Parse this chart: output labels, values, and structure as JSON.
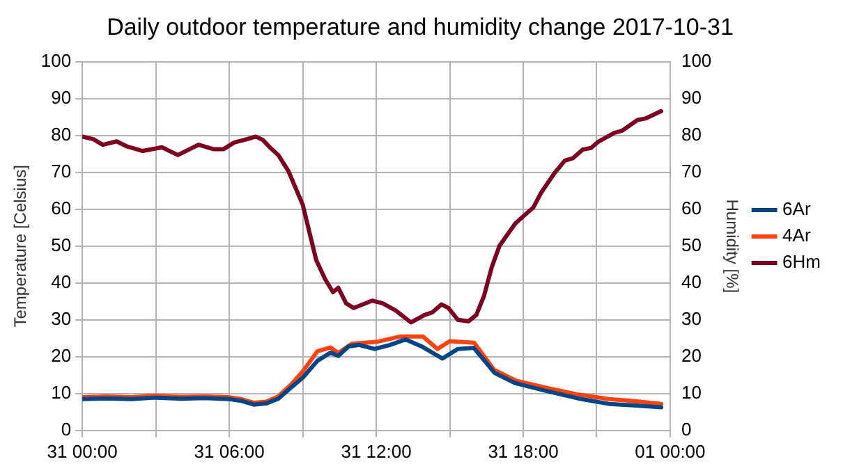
{
  "chart_data": {
    "type": "line",
    "title": "Daily outdoor temperature and humidity change 2017-10-31",
    "ylabel": "Temperature [Celsius]",
    "y2label": "Humidity [%]",
    "xlim": [
      "2017-10-31T00:00",
      "2017-11-01T00:00"
    ],
    "xticks": [
      {
        "value": "2017-10-31T00:00",
        "label": "31 00:00"
      },
      {
        "value": "2017-10-31T03:00",
        "label": null
      },
      {
        "value": "2017-10-31T06:00",
        "label": "31 06:00"
      },
      {
        "value": "2017-10-31T09:00",
        "label": null
      },
      {
        "value": "2017-10-31T12:00",
        "label": "31 12:00"
      },
      {
        "value": "2017-10-31T15:00",
        "label": null
      },
      {
        "value": "2017-10-31T18:00",
        "label": "31 18:00"
      },
      {
        "value": "2017-10-31T21:00",
        "label": null
      },
      {
        "value": "2017-11-01T00:00",
        "label": "01 00:00"
      }
    ],
    "ylim": [
      0,
      100
    ],
    "yticks": [
      0,
      10,
      20,
      30,
      40,
      50,
      60,
      70,
      80,
      90,
      100
    ],
    "y2lim": [
      0,
      100
    ],
    "y2ticks": [
      0,
      10,
      20,
      30,
      40,
      50,
      60,
      70,
      80,
      90,
      100
    ],
    "grid": true,
    "legend": "right",
    "marker": "none",
    "line_style": "solid",
    "series": [
      {
        "name": "6Ar",
        "color": "#004586",
        "x": [
          "2017-10-31T00:00",
          "2017-10-31T01:00",
          "2017-10-31T02:00",
          "2017-10-31T03:00",
          "2017-10-31T04:00",
          "2017-10-31T05:00",
          "2017-10-31T06:00",
          "2017-10-31T06:30",
          "2017-10-31T07:00",
          "2017-10-31T07:30",
          "2017-10-31T08:00",
          "2017-10-31T08:32",
          "2017-10-31T09:00",
          "2017-10-31T09:36",
          "2017-10-31T10:08",
          "2017-10-31T10:27",
          "2017-10-31T10:52",
          "2017-10-31T11:18",
          "2017-10-31T11:56",
          "2017-10-31T12:34",
          "2017-10-31T13:12",
          "2017-10-31T13:51",
          "2017-10-31T14:42",
          "2017-10-31T15:20",
          "2017-10-31T15:59",
          "2017-10-31T16:50",
          "2017-10-31T17:41",
          "2017-10-31T18:57",
          "2017-10-31T20:14",
          "2017-10-31T21:30",
          "2017-10-31T22:30",
          "2017-10-31T23:38"
        ],
        "values": [
          8.5,
          8.7,
          8.5,
          8.9,
          8.6,
          8.8,
          8.5,
          8,
          7,
          7.3,
          8.6,
          11.7,
          14.3,
          18.9,
          21.1,
          20.2,
          22.8,
          23.2,
          22.1,
          23.2,
          24.7,
          22.8,
          19.5,
          22.1,
          22.4,
          15.6,
          12.8,
          10.7,
          8.7,
          7.2,
          6.8,
          6.3
        ]
      },
      {
        "name": "4Ar",
        "color": "#ff420e",
        "x": [
          "2017-10-31T00:00",
          "2017-10-31T01:00",
          "2017-10-31T02:00",
          "2017-10-31T03:00",
          "2017-10-31T04:00",
          "2017-10-31T05:00",
          "2017-10-31T06:00",
          "2017-10-31T06:30",
          "2017-10-31T07:00",
          "2017-10-31T07:30",
          "2017-10-31T08:00",
          "2017-10-31T08:32",
          "2017-10-31T09:00",
          "2017-10-31T09:36",
          "2017-10-31T10:08",
          "2017-10-31T10:27",
          "2017-10-31T11:00",
          "2017-10-31T12:00",
          "2017-10-31T13:00",
          "2017-10-31T13:54",
          "2017-10-31T14:30",
          "2017-10-31T15:00",
          "2017-10-31T16:00",
          "2017-10-31T16:48",
          "2017-10-31T17:42",
          "2017-10-31T19:00",
          "2017-10-31T20:12",
          "2017-10-31T21:30",
          "2017-10-31T22:30",
          "2017-10-31T23:38"
        ],
        "values": [
          9,
          9.2,
          9,
          9.4,
          9.1,
          9.2,
          9,
          8.5,
          7.5,
          7.8,
          9.2,
          12.5,
          16,
          21.5,
          22.5,
          21,
          23.5,
          24,
          25.5,
          25.5,
          22.1,
          24.2,
          23.8,
          16.5,
          13.5,
          11.5,
          9.8,
          8.5,
          8,
          7.2
        ]
      },
      {
        "name": "6Hm",
        "color": "#7e0021",
        "axis": "y2",
        "x": [
          "2017-10-31T00:00",
          "2017-10-31T00:27",
          "2017-10-31T00:50",
          "2017-10-31T01:24",
          "2017-10-31T01:50",
          "2017-10-31T02:28",
          "2017-10-31T03:15",
          "2017-10-31T03:54",
          "2017-10-31T04:45",
          "2017-10-31T05:21",
          "2017-10-31T05:46",
          "2017-10-31T06:12",
          "2017-10-31T06:43",
          "2017-10-31T07:05",
          "2017-10-31T07:22",
          "2017-10-31T07:41",
          "2017-10-31T08:00",
          "2017-10-31T08:25",
          "2017-10-31T09:00",
          "2017-10-31T09:17",
          "2017-10-31T09:33",
          "2017-10-31T09:55",
          "2017-10-31T10:14",
          "2017-10-31T10:27",
          "2017-10-31T10:46",
          "2017-10-31T11:05",
          "2017-10-31T11:50",
          "2017-10-31T12:15",
          "2017-10-31T12:47",
          "2017-10-31T13:25",
          "2017-10-31T13:58",
          "2017-10-31T14:17",
          "2017-10-31T14:40",
          "2017-10-31T14:57",
          "2017-10-31T15:20",
          "2017-10-31T15:46",
          "2017-10-31T16:05",
          "2017-10-31T16:24",
          "2017-10-31T16:43",
          "2017-10-31T17:02",
          "2017-10-31T17:41",
          "2017-10-31T18:25",
          "2017-10-31T18:44",
          "2017-10-31T19:16",
          "2017-10-31T19:42",
          "2017-10-31T20:01",
          "2017-10-31T20:26",
          "2017-10-31T20:46",
          "2017-10-31T21:05",
          "2017-10-31T21:43",
          "2017-10-31T22:02",
          "2017-10-31T22:40",
          "2017-10-31T22:59",
          "2017-10-31T23:38"
        ],
        "values": [
          79.7,
          79,
          77.5,
          78.4,
          77,
          75.8,
          76.8,
          74.7,
          77.5,
          76.3,
          76.3,
          78.1,
          79,
          79.7,
          78.8,
          76.6,
          74.7,
          70.3,
          61.2,
          53.4,
          46.2,
          41,
          37.5,
          38.7,
          34.5,
          33.2,
          35.2,
          34.5,
          32.6,
          29.3,
          31.3,
          32,
          34.2,
          33.2,
          30,
          29.6,
          31.3,
          36.5,
          44.3,
          50.1,
          56.2,
          60.5,
          64.5,
          69.7,
          73.2,
          73.8,
          76.2,
          76.6,
          78.4,
          80.7,
          81.3,
          84.2,
          84.6,
          86.6
        ]
      }
    ]
  }
}
